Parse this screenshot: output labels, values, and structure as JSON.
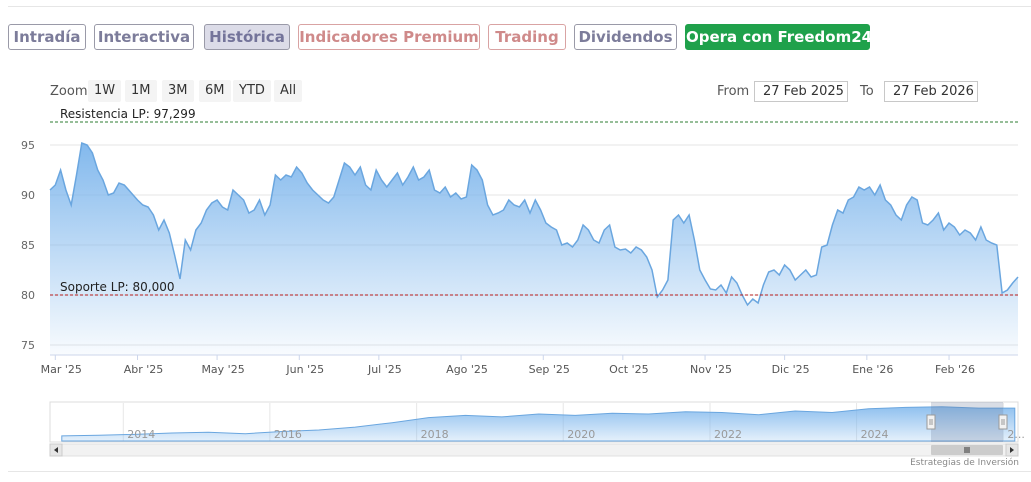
{
  "tabs": [
    {
      "label": "Intradía",
      "style": "normal"
    },
    {
      "label": "Interactiva",
      "style": "normal"
    },
    {
      "label": "Histórica",
      "style": "active"
    },
    {
      "label": "Indicadores Premium",
      "style": "premium"
    },
    {
      "label": "Trading",
      "style": "premium"
    },
    {
      "label": "Dividendos",
      "style": "normal"
    },
    {
      "label": "Opera con Freedom24",
      "style": "cta"
    }
  ],
  "zoom": {
    "label": "Zoom",
    "buttons": [
      "1W",
      "1M",
      "3M",
      "6M",
      "YTD",
      "All"
    ]
  },
  "range": {
    "from_label": "From",
    "from_value": "27 Feb 2025",
    "to_label": "To",
    "to_value": "27 Feb 2026"
  },
  "colors": {
    "line": "#6aa6df",
    "area_top": "#7cb5ec",
    "resistance": "#2e7d32",
    "support": "#b71c1c",
    "cta_green": "#1fa14b"
  },
  "chart_data": {
    "type": "area",
    "ylim": [
      74,
      97.5
    ],
    "yticks": [
      75,
      80,
      85,
      90,
      95
    ],
    "xlim": [
      "2025-02-27",
      "2026-02-27"
    ],
    "xticks": [
      {
        "date": "2025-03-01",
        "label": "Mar '25"
      },
      {
        "date": "2025-04-01",
        "label": "Abr '25"
      },
      {
        "date": "2025-05-01",
        "label": "May '25"
      },
      {
        "date": "2025-06-01",
        "label": "Jun '25"
      },
      {
        "date": "2025-07-01",
        "label": "Jul '25"
      },
      {
        "date": "2025-08-01",
        "label": "Ago '25"
      },
      {
        "date": "2025-09-01",
        "label": "Sep '25"
      },
      {
        "date": "2025-10-01",
        "label": "Oct '25"
      },
      {
        "date": "2025-11-01",
        "label": "Nov '25"
      },
      {
        "date": "2025-12-01",
        "label": "Dic '25"
      },
      {
        "date": "2026-01-01",
        "label": "Ene '26"
      },
      {
        "date": "2026-02-01",
        "label": "Feb '26"
      }
    ],
    "reference_lines": [
      {
        "label": "Resistencia LP: 97,299",
        "value": 97.299,
        "style": "resistance"
      },
      {
        "label": "Soporte LP: 80,000",
        "value": 80.0,
        "style": "support"
      }
    ],
    "series": [
      {
        "values": [
          [
            "2025-02-27",
            90.5
          ],
          [
            "2025-03-01",
            91.0
          ],
          [
            "2025-03-03",
            92.5
          ],
          [
            "2025-03-05",
            90.5
          ],
          [
            "2025-03-07",
            89.0
          ],
          [
            "2025-03-09",
            92.0
          ],
          [
            "2025-03-11",
            95.2
          ],
          [
            "2025-03-13",
            95.0
          ],
          [
            "2025-03-15",
            94.2
          ],
          [
            "2025-03-17",
            92.5
          ],
          [
            "2025-03-19",
            91.5
          ],
          [
            "2025-03-21",
            90.0
          ],
          [
            "2025-03-23",
            90.2
          ],
          [
            "2025-03-25",
            91.2
          ],
          [
            "2025-03-27",
            91.0
          ],
          [
            "2025-03-29",
            90.4
          ],
          [
            "2025-04-01",
            89.5
          ],
          [
            "2025-04-03",
            89.0
          ],
          [
            "2025-04-05",
            88.8
          ],
          [
            "2025-04-07",
            88.0
          ],
          [
            "2025-04-09",
            86.5
          ],
          [
            "2025-04-11",
            87.5
          ],
          [
            "2025-04-13",
            86.2
          ],
          [
            "2025-04-15",
            84.0
          ],
          [
            "2025-04-17",
            81.6
          ],
          [
            "2025-04-19",
            85.5
          ],
          [
            "2025-04-21",
            84.5
          ],
          [
            "2025-04-23",
            86.5
          ],
          [
            "2025-04-25",
            87.2
          ],
          [
            "2025-04-27",
            88.5
          ],
          [
            "2025-04-29",
            89.2
          ],
          [
            "2025-05-01",
            89.5
          ],
          [
            "2025-05-03",
            88.8
          ],
          [
            "2025-05-05",
            88.5
          ],
          [
            "2025-05-07",
            90.5
          ],
          [
            "2025-05-09",
            90.0
          ],
          [
            "2025-05-11",
            89.5
          ],
          [
            "2025-05-13",
            88.2
          ],
          [
            "2025-05-15",
            88.5
          ],
          [
            "2025-05-17",
            89.5
          ],
          [
            "2025-05-19",
            88.0
          ],
          [
            "2025-05-21",
            89.0
          ],
          [
            "2025-05-23",
            92.0
          ],
          [
            "2025-05-25",
            91.5
          ],
          [
            "2025-05-27",
            92.0
          ],
          [
            "2025-05-29",
            91.8
          ],
          [
            "2025-05-31",
            92.8
          ],
          [
            "2025-06-02",
            92.2
          ],
          [
            "2025-06-04",
            91.2
          ],
          [
            "2025-06-06",
            90.5
          ],
          [
            "2025-06-08",
            90.0
          ],
          [
            "2025-06-10",
            89.5
          ],
          [
            "2025-06-12",
            89.2
          ],
          [
            "2025-06-14",
            89.8
          ],
          [
            "2025-06-16",
            91.5
          ],
          [
            "2025-06-18",
            93.2
          ],
          [
            "2025-06-20",
            92.8
          ],
          [
            "2025-06-22",
            92.0
          ],
          [
            "2025-06-24",
            92.8
          ],
          [
            "2025-06-26",
            91.0
          ],
          [
            "2025-06-28",
            90.5
          ],
          [
            "2025-06-30",
            92.5
          ],
          [
            "2025-07-02",
            91.5
          ],
          [
            "2025-07-04",
            90.8
          ],
          [
            "2025-07-06",
            91.5
          ],
          [
            "2025-07-08",
            92.2
          ],
          [
            "2025-07-10",
            91.0
          ],
          [
            "2025-07-12",
            91.8
          ],
          [
            "2025-07-14",
            92.8
          ],
          [
            "2025-07-16",
            91.5
          ],
          [
            "2025-07-18",
            91.8
          ],
          [
            "2025-07-20",
            92.5
          ],
          [
            "2025-07-22",
            90.5
          ],
          [
            "2025-07-24",
            90.2
          ],
          [
            "2025-07-26",
            90.8
          ],
          [
            "2025-07-28",
            89.8
          ],
          [
            "2025-07-30",
            90.2
          ],
          [
            "2025-08-01",
            89.6
          ],
          [
            "2025-08-03",
            89.8
          ],
          [
            "2025-08-05",
            93.0
          ],
          [
            "2025-08-07",
            92.5
          ],
          [
            "2025-08-09",
            91.5
          ],
          [
            "2025-08-11",
            89.0
          ],
          [
            "2025-08-13",
            88.0
          ],
          [
            "2025-08-15",
            88.2
          ],
          [
            "2025-08-17",
            88.5
          ],
          [
            "2025-08-19",
            89.5
          ],
          [
            "2025-08-21",
            89.0
          ],
          [
            "2025-08-23",
            88.8
          ],
          [
            "2025-08-25",
            89.5
          ],
          [
            "2025-08-27",
            88.2
          ],
          [
            "2025-08-29",
            89.5
          ],
          [
            "2025-08-31",
            88.5
          ],
          [
            "2025-09-02",
            87.2
          ],
          [
            "2025-09-04",
            86.8
          ],
          [
            "2025-09-06",
            86.5
          ],
          [
            "2025-09-08",
            85.0
          ],
          [
            "2025-09-10",
            85.2
          ],
          [
            "2025-09-12",
            84.8
          ],
          [
            "2025-09-14",
            85.5
          ],
          [
            "2025-09-16",
            87.0
          ],
          [
            "2025-09-18",
            86.5
          ],
          [
            "2025-09-20",
            85.5
          ],
          [
            "2025-09-22",
            85.2
          ],
          [
            "2025-09-24",
            86.5
          ],
          [
            "2025-09-26",
            87.0
          ],
          [
            "2025-09-28",
            84.8
          ],
          [
            "2025-09-30",
            84.5
          ],
          [
            "2025-10-02",
            84.6
          ],
          [
            "2025-10-04",
            84.2
          ],
          [
            "2025-10-06",
            84.8
          ],
          [
            "2025-10-08",
            84.5
          ],
          [
            "2025-10-10",
            83.8
          ],
          [
            "2025-10-12",
            82.5
          ],
          [
            "2025-10-14",
            79.8
          ],
          [
            "2025-10-16",
            80.5
          ],
          [
            "2025-10-18",
            81.5
          ],
          [
            "2025-10-20",
            87.5
          ],
          [
            "2025-10-22",
            88.0
          ],
          [
            "2025-10-24",
            87.2
          ],
          [
            "2025-10-26",
            88.0
          ],
          [
            "2025-10-28",
            85.5
          ],
          [
            "2025-10-30",
            82.5
          ],
          [
            "2025-11-01",
            81.5
          ],
          [
            "2025-11-03",
            80.6
          ],
          [
            "2025-11-05",
            80.5
          ],
          [
            "2025-11-07",
            81.0
          ],
          [
            "2025-11-09",
            80.2
          ],
          [
            "2025-11-11",
            81.8
          ],
          [
            "2025-11-13",
            81.2
          ],
          [
            "2025-11-15",
            80.0
          ],
          [
            "2025-11-17",
            79.0
          ],
          [
            "2025-11-19",
            79.6
          ],
          [
            "2025-11-21",
            79.2
          ],
          [
            "2025-11-23",
            81.0
          ],
          [
            "2025-11-25",
            82.3
          ],
          [
            "2025-11-27",
            82.5
          ],
          [
            "2025-11-29",
            82.0
          ],
          [
            "2025-12-01",
            83.0
          ],
          [
            "2025-12-03",
            82.5
          ],
          [
            "2025-12-05",
            81.5
          ],
          [
            "2025-12-07",
            82.0
          ],
          [
            "2025-12-09",
            82.5
          ],
          [
            "2025-12-11",
            81.8
          ],
          [
            "2025-12-13",
            82.0
          ],
          [
            "2025-12-15",
            84.8
          ],
          [
            "2025-12-17",
            85.0
          ],
          [
            "2025-12-19",
            87.0
          ],
          [
            "2025-12-21",
            88.5
          ],
          [
            "2025-12-23",
            88.2
          ],
          [
            "2025-12-25",
            89.5
          ],
          [
            "2025-12-27",
            89.8
          ],
          [
            "2025-12-29",
            90.8
          ],
          [
            "2025-12-31",
            90.5
          ],
          [
            "2026-01-02",
            90.8
          ],
          [
            "2026-01-04",
            90.0
          ],
          [
            "2026-01-06",
            91.0
          ],
          [
            "2026-01-08",
            89.5
          ],
          [
            "2026-01-10",
            89.0
          ],
          [
            "2026-01-12",
            88.0
          ],
          [
            "2026-01-14",
            87.5
          ],
          [
            "2026-01-16",
            89.0
          ],
          [
            "2026-01-18",
            89.8
          ],
          [
            "2026-01-20",
            89.5
          ],
          [
            "2026-01-22",
            87.2
          ],
          [
            "2026-01-24",
            87.0
          ],
          [
            "2026-01-26",
            87.5
          ],
          [
            "2026-01-28",
            88.2
          ],
          [
            "2026-01-30",
            86.5
          ],
          [
            "2026-02-01",
            87.2
          ],
          [
            "2026-02-03",
            86.8
          ],
          [
            "2026-02-05",
            86.0
          ],
          [
            "2026-02-07",
            86.5
          ],
          [
            "2026-02-09",
            86.2
          ],
          [
            "2026-02-11",
            85.5
          ],
          [
            "2026-02-13",
            86.8
          ],
          [
            "2026-02-15",
            85.5
          ],
          [
            "2026-02-17",
            85.2
          ],
          [
            "2026-02-19",
            85.0
          ],
          [
            "2026-02-21",
            80.2
          ],
          [
            "2026-02-23",
            80.5
          ],
          [
            "2026-02-25",
            81.2
          ],
          [
            "2026-02-27",
            81.8
          ]
        ]
      }
    ],
    "navigator": {
      "xlabels": [
        "2014",
        "2016",
        "2018",
        "2020",
        "2022",
        "2024",
        "2..."
      ],
      "values": [
        [
          "2013-03-01",
          52
        ],
        [
          "2013-09-01",
          53
        ],
        [
          "2014-03-01",
          54
        ],
        [
          "2014-09-01",
          56
        ],
        [
          "2015-03-01",
          57
        ],
        [
          "2015-09-01",
          55
        ],
        [
          "2016-03-01",
          58
        ],
        [
          "2016-09-01",
          60
        ],
        [
          "2017-03-01",
          64
        ],
        [
          "2017-09-01",
          70
        ],
        [
          "2018-03-01",
          77
        ],
        [
          "2018-09-01",
          80
        ],
        [
          "2019-03-01",
          78
        ],
        [
          "2019-09-01",
          82
        ],
        [
          "2020-03-01",
          80
        ],
        [
          "2020-09-01",
          83
        ],
        [
          "2021-03-01",
          82
        ],
        [
          "2021-09-01",
          85
        ],
        [
          "2022-03-01",
          84
        ],
        [
          "2022-09-01",
          81
        ],
        [
          "2023-03-01",
          86
        ],
        [
          "2023-09-01",
          84
        ],
        [
          "2024-03-01",
          89
        ],
        [
          "2024-09-01",
          91
        ],
        [
          "2025-03-01",
          92
        ],
        [
          "2025-09-01",
          90
        ],
        [
          "2026-02-27",
          90
        ]
      ],
      "ylim": [
        45,
        97
      ]
    }
  },
  "credit": "Estrategias de Inversión"
}
